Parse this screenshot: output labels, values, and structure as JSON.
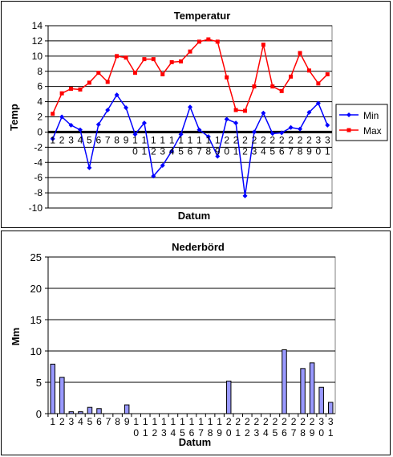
{
  "chart_data": [
    {
      "type": "line",
      "title": "Temperatur",
      "xlabel": "Datum",
      "ylabel": "Temp",
      "ylim": [
        -10,
        14
      ],
      "yticks": [
        -10,
        -8,
        -6,
        -4,
        -2,
        0,
        2,
        4,
        6,
        8,
        10,
        12,
        14
      ],
      "grid": true,
      "legend_position": "right",
      "categories": [
        "1",
        "2",
        "3",
        "4",
        "5",
        "6",
        "7",
        "8",
        "9",
        "10",
        "11",
        "12",
        "13",
        "14",
        "15",
        "16",
        "17",
        "18",
        "19",
        "20",
        "21",
        "22",
        "23",
        "24",
        "25",
        "26",
        "27",
        "28",
        "29",
        "30",
        "31"
      ],
      "series": [
        {
          "name": "Min",
          "color": "#0000FF",
          "values": [
            -0.9,
            2.0,
            0.9,
            0.3,
            -4.7,
            1.0,
            2.9,
            4.9,
            3.2,
            -0.3,
            1.2,
            -5.8,
            -4.4,
            -2.5,
            -0.3,
            3.3,
            0.3,
            -0.6,
            -3.2,
            1.7,
            1.2,
            -8.4,
            0.0,
            2.5,
            -0.2,
            -0.1,
            0.6,
            0.4,
            2.6,
            3.8,
            0.9
          ]
        },
        {
          "name": "Max",
          "color": "#FF0000",
          "values": [
            2.4,
            5.1,
            5.7,
            5.6,
            6.5,
            7.8,
            6.6,
            10.0,
            9.8,
            7.8,
            9.6,
            9.6,
            7.6,
            9.2,
            9.3,
            10.6,
            11.9,
            12.2,
            11.9,
            7.2,
            2.9,
            2.8,
            6.0,
            11.5,
            6.0,
            5.4,
            7.3,
            10.4,
            8.1,
            6.4,
            7.6
          ]
        }
      ]
    },
    {
      "type": "bar",
      "title": "Nederbörd",
      "xlabel": "Datum",
      "ylabel": "Mm",
      "ylim": [
        0,
        25
      ],
      "yticks": [
        0,
        5,
        10,
        15,
        20,
        25
      ],
      "grid": true,
      "bar_color": "#9999FF",
      "categories": [
        "1",
        "2",
        "3",
        "4",
        "5",
        "6",
        "7",
        "8",
        "9",
        "10",
        "11",
        "12",
        "13",
        "14",
        "15",
        "16",
        "17",
        "18",
        "19",
        "20",
        "21",
        "22",
        "23",
        "24",
        "25",
        "26",
        "27",
        "28",
        "29",
        "30",
        "31"
      ],
      "values": [
        7.9,
        5.8,
        0.3,
        0.3,
        1.0,
        0.8,
        0,
        0,
        1.4,
        0,
        0,
        0,
        0,
        0,
        0,
        0,
        0,
        0,
        0,
        5.2,
        0,
        0,
        0,
        0,
        0,
        10.2,
        0,
        7.2,
        8.1,
        4.2,
        1.8
      ]
    }
  ]
}
